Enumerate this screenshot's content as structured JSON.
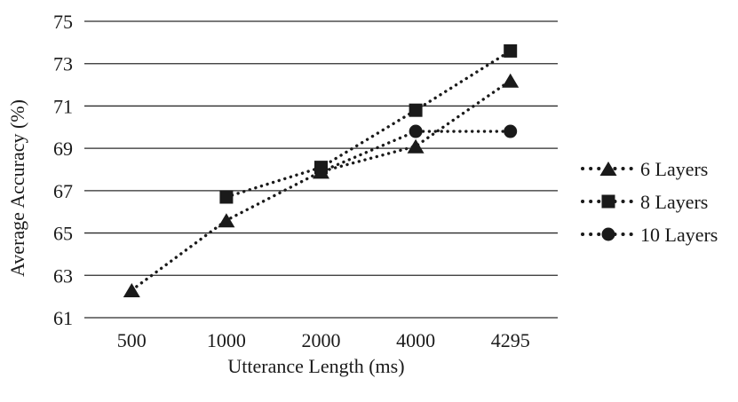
{
  "chart_data": {
    "type": "line",
    "title": "",
    "xlabel": "Utterance Length (ms)",
    "ylabel": "Average Accuracy (%)",
    "categories": [
      "500",
      "1000",
      "2000",
      "4000",
      "4295"
    ],
    "y_ticks": [
      75,
      73,
      71,
      69,
      67,
      65,
      63,
      61
    ],
    "ylim": [
      61,
      75
    ],
    "grid": "horizontal",
    "line_style": "dotted",
    "legend_position": "right",
    "ink_color": "#1a1a1a",
    "gridline_color": "#2b2b2b",
    "background_color": "#ffffff",
    "series": [
      {
        "name": "6 Layers",
        "marker": "triangle",
        "values": [
          62.3,
          65.6,
          67.9,
          69.1,
          72.2
        ]
      },
      {
        "name": "8 Layers",
        "marker": "square",
        "values": [
          null,
          66.7,
          68.1,
          70.8,
          73.6
        ]
      },
      {
        "name": "10 Layers",
        "marker": "circle",
        "values": [
          null,
          null,
          67.9,
          69.8,
          69.8
        ]
      }
    ]
  }
}
